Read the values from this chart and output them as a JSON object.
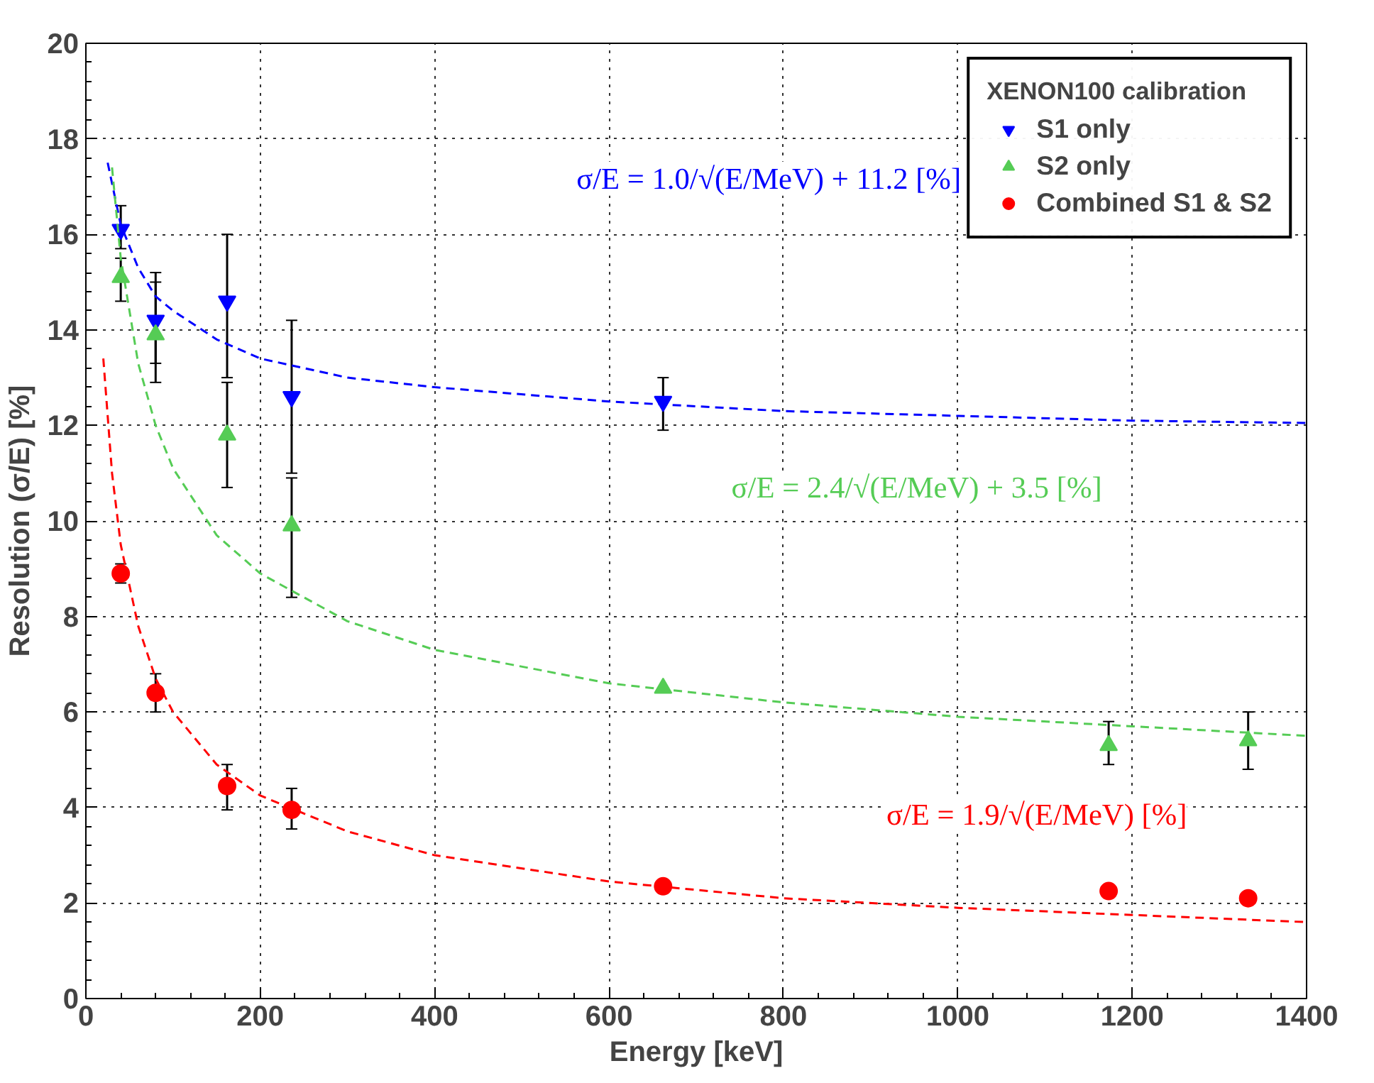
{
  "chart_data": {
    "type": "scatter",
    "xlabel": "Energy [keV]",
    "ylabel": "Resolution (σ/E) [%]",
    "legend_title": "XENON100 calibration",
    "legend": "top right",
    "grid": true,
    "line_style": "dotted",
    "xlim": [
      0,
      1400
    ],
    "ylim": [
      0,
      20
    ],
    "xticks": [
      0,
      200,
      400,
      600,
      800,
      1000,
      1200,
      1400
    ],
    "yticks": [
      0,
      2,
      4,
      6,
      8,
      10,
      12,
      14,
      16,
      18,
      20
    ],
    "series": [
      {
        "name": "S1 only",
        "marker": "triangle",
        "color": "#0000ff",
        "x": [
          40,
          80,
          162,
          236,
          662
        ],
        "values": [
          16.1,
          14.2,
          14.6,
          12.6,
          12.5
        ],
        "errors": [
          [
            15.7,
            16.6
          ],
          [
            13.3,
            15.2
          ],
          [
            13.0,
            16.0
          ],
          [
            11.0,
            14.2
          ],
          [
            11.9,
            13.0
          ]
        ]
      },
      {
        "name": "S2 only",
        "marker": "triangle",
        "color": "#55cc55",
        "x": [
          40,
          80,
          162,
          236,
          662,
          1173,
          1333
        ],
        "values": [
          15.1,
          13.9,
          11.8,
          9.9,
          6.5,
          5.3,
          5.4
        ],
        "errors": [
          [
            14.6,
            15.5
          ],
          [
            12.9,
            15.0
          ],
          [
            10.7,
            12.9
          ],
          [
            8.4,
            10.9
          ],
          null,
          [
            4.9,
            5.8
          ],
          [
            4.8,
            6.0
          ]
        ]
      },
      {
        "name": "Combined S1 & S2",
        "marker": "circle",
        "color": "#ff0000",
        "x": [
          40,
          80,
          162,
          236,
          662,
          1173,
          1333
        ],
        "values": [
          8.9,
          6.4,
          4.45,
          3.95,
          2.35,
          2.25,
          2.1
        ],
        "errors": [
          [
            8.7,
            9.1
          ],
          [
            6.0,
            6.8
          ],
          [
            3.95,
            4.9
          ],
          [
            3.55,
            4.4
          ],
          null,
          null,
          null
        ]
      },
      {
        "type": "line",
        "line_style": "dashed",
        "color": "#0000ff",
        "x": [
          25,
          40,
          60,
          80,
          100,
          150,
          200,
          300,
          400,
          600,
          800,
          1000,
          1200,
          1400
        ],
        "values": [
          17.5,
          16.2,
          15.3,
          14.7,
          14.4,
          13.8,
          13.4,
          13.0,
          12.8,
          12.5,
          12.3,
          12.2,
          12.1,
          12.05
        ]
      },
      {
        "type": "line",
        "line_style": "dashed",
        "color": "#55cc55",
        "x": [
          30,
          40,
          60,
          80,
          100,
          150,
          200,
          300,
          400,
          600,
          800,
          1000,
          1200,
          1400
        ],
        "values": [
          17.4,
          15.5,
          13.3,
          12.0,
          11.1,
          9.7,
          8.9,
          7.9,
          7.3,
          6.6,
          6.2,
          5.9,
          5.7,
          5.5
        ]
      },
      {
        "type": "line",
        "line_style": "dashed",
        "color": "#ff0000",
        "x": [
          20,
          30,
          40,
          60,
          80,
          100,
          150,
          200,
          300,
          400,
          600,
          800,
          1000,
          1200,
          1400
        ],
        "values": [
          13.4,
          11.0,
          9.5,
          7.8,
          6.7,
          6.0,
          4.9,
          4.25,
          3.5,
          3.0,
          2.45,
          2.1,
          1.9,
          1.75,
          1.6
        ]
      }
    ],
    "annotations": [
      "σ/E = 1.0/√(E/MeV) + 11.2 [%]",
      "σ/E = 2.4/√(E/MeV) + 3.5 [%]",
      "σ/E = 1.9/√(E/MeV) [%]"
    ]
  }
}
